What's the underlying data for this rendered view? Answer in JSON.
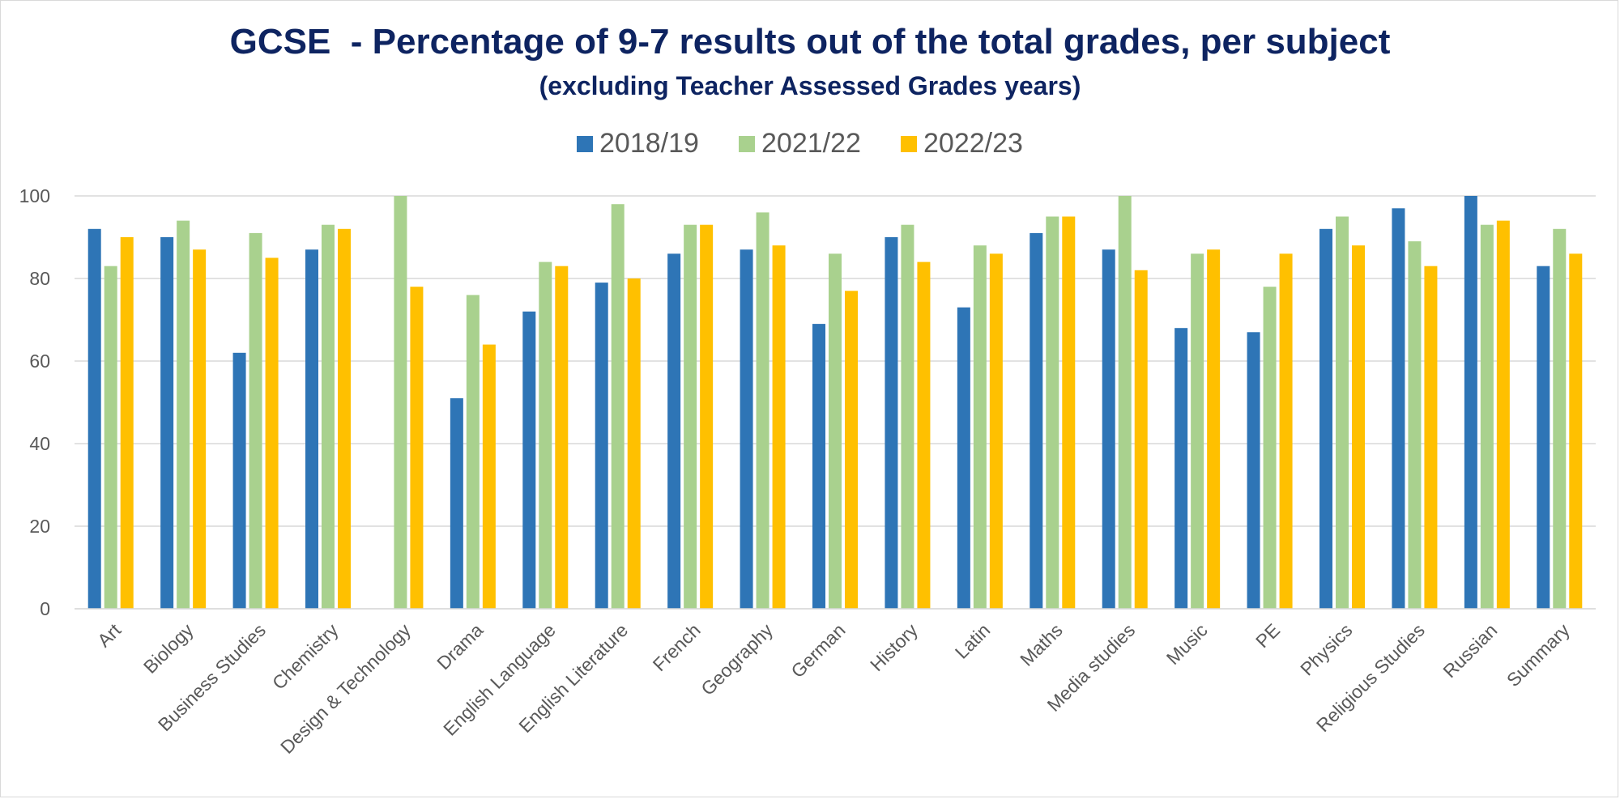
{
  "chart_data": {
    "type": "bar",
    "title": "GCSE  - Percentage of 9-7 results out of the total grades, per subject",
    "subtitle": "(excluding Teacher Assessed Grades years)",
    "xlabel": "",
    "ylabel": "",
    "ylim": [
      0,
      100
    ],
    "yticks": [
      0,
      20,
      40,
      60,
      80,
      100
    ],
    "grid": true,
    "legend_position": "top-center",
    "categories": [
      "Art",
      "Biology",
      "Business Studies",
      "Chemistry",
      "Design & Technology",
      "Drama",
      "English Language",
      "English Literature",
      "French",
      "Geography",
      "German",
      "History",
      "Latin",
      "Maths",
      "Media studies",
      "Music",
      "PE",
      "Physics",
      "Religious Studies",
      "Russian",
      "Summary"
    ],
    "series": [
      {
        "name": "2018/19",
        "color": "#2E75B6",
        "values": [
          92,
          90,
          62,
          87,
          null,
          51,
          72,
          79,
          86,
          87,
          69,
          90,
          73,
          91,
          87,
          68,
          67,
          92,
          97,
          100,
          83
        ]
      },
      {
        "name": "2021/22",
        "color": "#A9D18E",
        "values": [
          83,
          94,
          91,
          93,
          100,
          76,
          84,
          98,
          93,
          96,
          86,
          93,
          88,
          95,
          100,
          86,
          78,
          95,
          89,
          93,
          92
        ]
      },
      {
        "name": "2022/23",
        "color": "#FFC000",
        "values": [
          90,
          87,
          85,
          92,
          78,
          64,
          83,
          80,
          93,
          88,
          77,
          84,
          86,
          95,
          82,
          87,
          86,
          88,
          83,
          94,
          86
        ]
      }
    ],
    "colors": {
      "title": "#0E2461",
      "grid": "#d9d9d9",
      "text": "#595959"
    }
  }
}
